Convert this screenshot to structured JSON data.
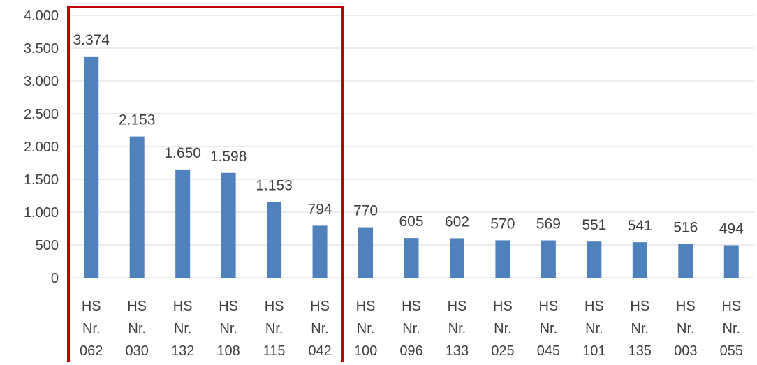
{
  "chart_data": {
    "type": "bar",
    "categories": [
      [
        "HS",
        "Nr.",
        "062"
      ],
      [
        "HS",
        "Nr.",
        "030"
      ],
      [
        "HS",
        "Nr.",
        "132"
      ],
      [
        "HS",
        "Nr.",
        "108"
      ],
      [
        "HS",
        "Nr.",
        "115"
      ],
      [
        "HS",
        "Nr.",
        "042"
      ],
      [
        "HS",
        "Nr.",
        "100"
      ],
      [
        "HS",
        "Nr.",
        "096"
      ],
      [
        "HS",
        "Nr.",
        "133"
      ],
      [
        "HS",
        "Nr.",
        "025"
      ],
      [
        "HS",
        "Nr.",
        "045"
      ],
      [
        "HS",
        "Nr.",
        "101"
      ],
      [
        "HS",
        "Nr.",
        "135"
      ],
      [
        "HS",
        "Nr.",
        "003"
      ],
      [
        "HS",
        "Nr.",
        "055"
      ]
    ],
    "values": [
      3374,
      2153,
      1650,
      1598,
      1153,
      794,
      770,
      605,
      602,
      570,
      569,
      551,
      541,
      516,
      494
    ],
    "data_labels": [
      "3.374",
      "2.153",
      "1.650",
      "1.598",
      "1.153",
      "794",
      "770",
      "605",
      "602",
      "570",
      "569",
      "551",
      "541",
      "516",
      "494"
    ],
    "yticks": [
      0,
      500,
      1000,
      1500,
      2000,
      2500,
      3000,
      3500,
      4000
    ],
    "ytick_labels": [
      "0",
      "500",
      "1.000",
      "1.500",
      "2.000",
      "2.500",
      "3.000",
      "3.500",
      "4.000"
    ],
    "ylim": [
      0,
      4000
    ],
    "grid": true,
    "legend": "none",
    "title": "",
    "xlabel": "",
    "ylabel": "",
    "highlight": {
      "first_index": 0,
      "last_index": 5
    },
    "colors": {
      "bar": "#4f81bd",
      "grid": "#d9d9d9",
      "text": "#404040",
      "highlight_box": "#c00000"
    }
  }
}
